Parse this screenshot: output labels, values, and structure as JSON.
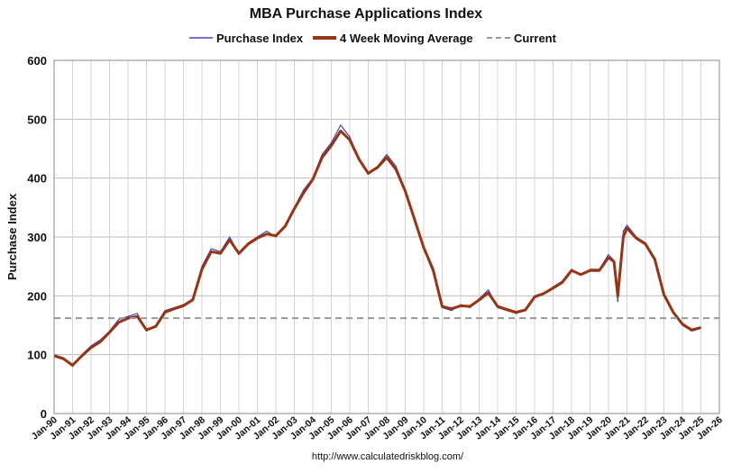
{
  "chart_data": {
    "type": "line",
    "title": "MBA Purchase Applications Index",
    "ylabel": "Purchase Index",
    "xlabel": "",
    "source": "http://www.calculatedriskblog.com/",
    "ylim": [
      0,
      600
    ],
    "yticks": [
      0,
      100,
      200,
      300,
      400,
      500,
      600
    ],
    "xlim": [
      1990,
      2026
    ],
    "grid": true,
    "legend_position": "top-center",
    "x_tick_labels": [
      "Jan-90",
      "Jan-91",
      "Jan-92",
      "Jan-93",
      "Jan-94",
      "Jan-95",
      "Jan-96",
      "Jan-97",
      "Jan-98",
      "Jan-99",
      "Jan-00",
      "Jan-01",
      "Jan-02",
      "Jan-03",
      "Jan-04",
      "Jan-05",
      "Jan-06",
      "Jan-07",
      "Jan-08",
      "Jan-09",
      "Jan-10",
      "Jan-11",
      "Jan-12",
      "Jan-13",
      "Jan-14",
      "Jan-15",
      "Jan-16",
      "Jan-17",
      "Jan-18",
      "Jan-19",
      "Jan-20",
      "Jan-21",
      "Jan-22",
      "Jan-23",
      "Jan-24",
      "Jan-25",
      "Jan-26"
    ],
    "series": [
      {
        "name": "Purchase Index",
        "color": "#4444cc",
        "x": [
          1990.0,
          1990.5,
          1991.0,
          1991.5,
          1992.0,
          1992.5,
          1993.0,
          1993.5,
          1994.0,
          1994.5,
          1995.0,
          1995.5,
          1996.0,
          1996.5,
          1997.0,
          1997.5,
          1998.0,
          1998.5,
          1999.0,
          1999.5,
          2000.0,
          2000.5,
          2001.0,
          2001.5,
          2002.0,
          2002.5,
          2003.0,
          2003.5,
          2004.0,
          2004.5,
          2005.0,
          2005.5,
          2006.0,
          2006.5,
          2007.0,
          2007.5,
          2008.0,
          2008.5,
          2009.0,
          2009.5,
          2010.0,
          2010.5,
          2011.0,
          2011.5,
          2012.0,
          2012.5,
          2013.0,
          2013.5,
          2014.0,
          2014.5,
          2015.0,
          2015.5,
          2016.0,
          2016.5,
          2017.0,
          2017.5,
          2018.0,
          2018.5,
          2019.0,
          2019.5,
          2020.0,
          2020.3,
          2020.5,
          2020.8,
          2021.0,
          2021.5,
          2022.0,
          2022.5,
          2023.0,
          2023.5,
          2024.0,
          2024.5,
          2025.0
        ],
        "values": [
          100,
          95,
          80,
          100,
          115,
          125,
          140,
          160,
          165,
          170,
          140,
          150,
          175,
          180,
          185,
          195,
          250,
          280,
          275,
          300,
          270,
          290,
          300,
          310,
          300,
          320,
          350,
          380,
          400,
          440,
          460,
          490,
          470,
          430,
          410,
          420,
          440,
          420,
          380,
          330,
          280,
          240,
          180,
          175,
          185,
          180,
          195,
          210,
          180,
          175,
          170,
          175,
          200,
          205,
          215,
          225,
          245,
          235,
          245,
          245,
          270,
          260,
          190,
          310,
          320,
          300,
          290,
          260,
          200,
          170,
          150,
          140,
          145
        ]
      },
      {
        "name": "4 Week Moving Average",
        "color": "#993311",
        "x": [
          1990.0,
          1990.5,
          1991.0,
          1991.5,
          1992.0,
          1992.5,
          1993.0,
          1993.5,
          1994.0,
          1994.5,
          1995.0,
          1995.5,
          1996.0,
          1996.5,
          1997.0,
          1997.5,
          1998.0,
          1998.5,
          1999.0,
          1999.5,
          2000.0,
          2000.5,
          2001.0,
          2001.5,
          2002.0,
          2002.5,
          2003.0,
          2003.5,
          2004.0,
          2004.5,
          2005.0,
          2005.5,
          2006.0,
          2006.5,
          2007.0,
          2007.5,
          2008.0,
          2008.5,
          2009.0,
          2009.5,
          2010.0,
          2010.5,
          2011.0,
          2011.5,
          2012.0,
          2012.5,
          2013.0,
          2013.5,
          2014.0,
          2014.5,
          2015.0,
          2015.5,
          2016.0,
          2016.5,
          2017.0,
          2017.5,
          2018.0,
          2018.5,
          2019.0,
          2019.5,
          2020.0,
          2020.3,
          2020.5,
          2020.8,
          2021.0,
          2021.5,
          2022.0,
          2022.5,
          2023.0,
          2023.5,
          2024.0,
          2024.5,
          2025.0
        ],
        "values": [
          98,
          93,
          82,
          98,
          112,
          122,
          138,
          155,
          162,
          165,
          142,
          148,
          172,
          178,
          183,
          193,
          245,
          275,
          272,
          295,
          272,
          288,
          298,
          305,
          302,
          318,
          348,
          375,
          398,
          435,
          455,
          480,
          465,
          432,
          408,
          418,
          435,
          415,
          378,
          330,
          282,
          245,
          182,
          178,
          183,
          182,
          193,
          205,
          182,
          177,
          172,
          176,
          198,
          204,
          213,
          223,
          243,
          236,
          243,
          243,
          265,
          258,
          200,
          300,
          315,
          298,
          288,
          262,
          202,
          172,
          152,
          142,
          146
        ]
      },
      {
        "name": "Current",
        "color": "#999999",
        "style": "dashed",
        "value": 162
      }
    ]
  }
}
